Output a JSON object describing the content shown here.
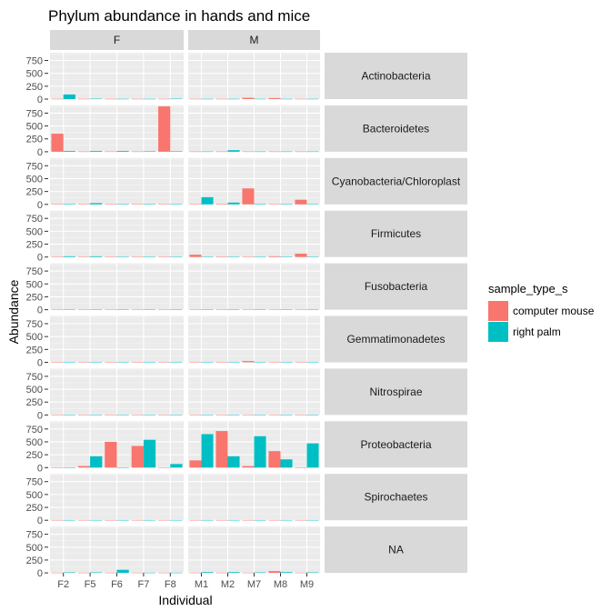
{
  "chart_data": {
    "type": "bar",
    "title": "Phylum abundance in hands and mice",
    "xlabel": "Individual",
    "ylabel": "Abundance",
    "ylim": [
      0,
      900
    ],
    "yticks": [
      "0",
      "250",
      "500",
      "750"
    ],
    "facet_cols": [
      "F",
      "M"
    ],
    "facet_rows": [
      "Actinobacteria",
      "Bacteroidetes",
      "Cyanobacteria/Chloroplast",
      "Firmicutes",
      "Fusobacteria",
      "Gemmatimonadetes",
      "Nitrospirae",
      "Proteobacteria",
      "Spirochaetes",
      "NA"
    ],
    "individuals": {
      "F": [
        "F2",
        "F5",
        "F6",
        "F7",
        "F8"
      ],
      "M": [
        "M1",
        "M2",
        "M7",
        "M8",
        "M9"
      ]
    },
    "legend": {
      "title": "sample_type_s",
      "placement": "right",
      "items": [
        {
          "name": "computer mouse",
          "color": "#F8766D"
        },
        {
          "name": "right palm",
          "color": "#00BFC4"
        }
      ]
    },
    "values": {
      "Actinobacteria": {
        "F": {
          "computer mouse": [
            5,
            5,
            5,
            5,
            5
          ],
          "right palm": [
            90,
            8,
            5,
            5,
            8
          ]
        },
        "M": {
          "computer mouse": [
            5,
            5,
            25,
            20,
            5
          ],
          "right palm": [
            5,
            5,
            5,
            5,
            5
          ]
        }
      },
      "Bacteroidetes": {
        "F": {
          "computer mouse": [
            350,
            5,
            5,
            5,
            880
          ],
          "right palm": [
            15,
            15,
            15,
            10,
            10
          ]
        },
        "M": {
          "computer mouse": [
            5,
            5,
            5,
            5,
            5
          ],
          "right palm": [
            5,
            30,
            5,
            5,
            5
          ]
        }
      },
      "Cyanobacteria/Chloroplast": {
        "F": {
          "computer mouse": [
            5,
            5,
            5,
            5,
            5
          ],
          "right palm": [
            10,
            25,
            5,
            5,
            5
          ]
        },
        "M": {
          "computer mouse": [
            5,
            10,
            310,
            5,
            90
          ],
          "right palm": [
            140,
            35,
            10,
            5,
            5
          ]
        }
      },
      "Firmicutes": {
        "F": {
          "computer mouse": [
            5,
            5,
            5,
            5,
            5
          ],
          "right palm": [
            15,
            15,
            5,
            5,
            5
          ]
        },
        "M": {
          "computer mouse": [
            45,
            10,
            5,
            15,
            65
          ],
          "right palm": [
            5,
            5,
            5,
            5,
            5
          ]
        }
      },
      "Fusobacteria": {
        "F": {
          "computer mouse": [
            5,
            5,
            5,
            5,
            5
          ],
          "right palm": [
            5,
            5,
            5,
            5,
            5
          ]
        },
        "M": {
          "computer mouse": [
            5,
            5,
            5,
            5,
            5
          ],
          "right palm": [
            5,
            5,
            5,
            5,
            5
          ]
        }
      },
      "Gemmatimonadetes": {
        "F": {
          "computer mouse": [
            5,
            5,
            5,
            5,
            5
          ],
          "right palm": [
            5,
            5,
            5,
            5,
            5
          ]
        },
        "M": {
          "computer mouse": [
            5,
            5,
            25,
            5,
            5
          ],
          "right palm": [
            5,
            5,
            5,
            5,
            5
          ]
        }
      },
      "Nitrospirae": {
        "F": {
          "computer mouse": [
            5,
            5,
            5,
            5,
            5
          ],
          "right palm": [
            5,
            5,
            5,
            5,
            5
          ]
        },
        "M": {
          "computer mouse": [
            5,
            5,
            5,
            5,
            5
          ],
          "right palm": [
            5,
            5,
            5,
            5,
            5
          ]
        }
      },
      "Proteobacteria": {
        "F": {
          "computer mouse": [
            5,
            30,
            500,
            420,
            5
          ],
          "right palm": [
            5,
            220,
            5,
            540,
            70
          ]
        },
        "M": {
          "computer mouse": [
            140,
            710,
            30,
            320,
            5
          ],
          "right palm": [
            650,
            220,
            610,
            160,
            470
          ]
        }
      },
      "Spirochaetes": {
        "F": {
          "computer mouse": [
            5,
            5,
            5,
            5,
            5
          ],
          "right palm": [
            5,
            5,
            5,
            5,
            5
          ]
        },
        "M": {
          "computer mouse": [
            5,
            5,
            5,
            5,
            5
          ],
          "right palm": [
            5,
            5,
            5,
            5,
            5
          ]
        }
      },
      "NA": {
        "F": {
          "computer mouse": [
            5,
            5,
            5,
            5,
            5
          ],
          "right palm": [
            10,
            10,
            60,
            5,
            5
          ]
        },
        "M": {
          "computer mouse": [
            5,
            5,
            5,
            35,
            5
          ],
          "right palm": [
            15,
            15,
            10,
            15,
            10
          ]
        }
      }
    }
  }
}
